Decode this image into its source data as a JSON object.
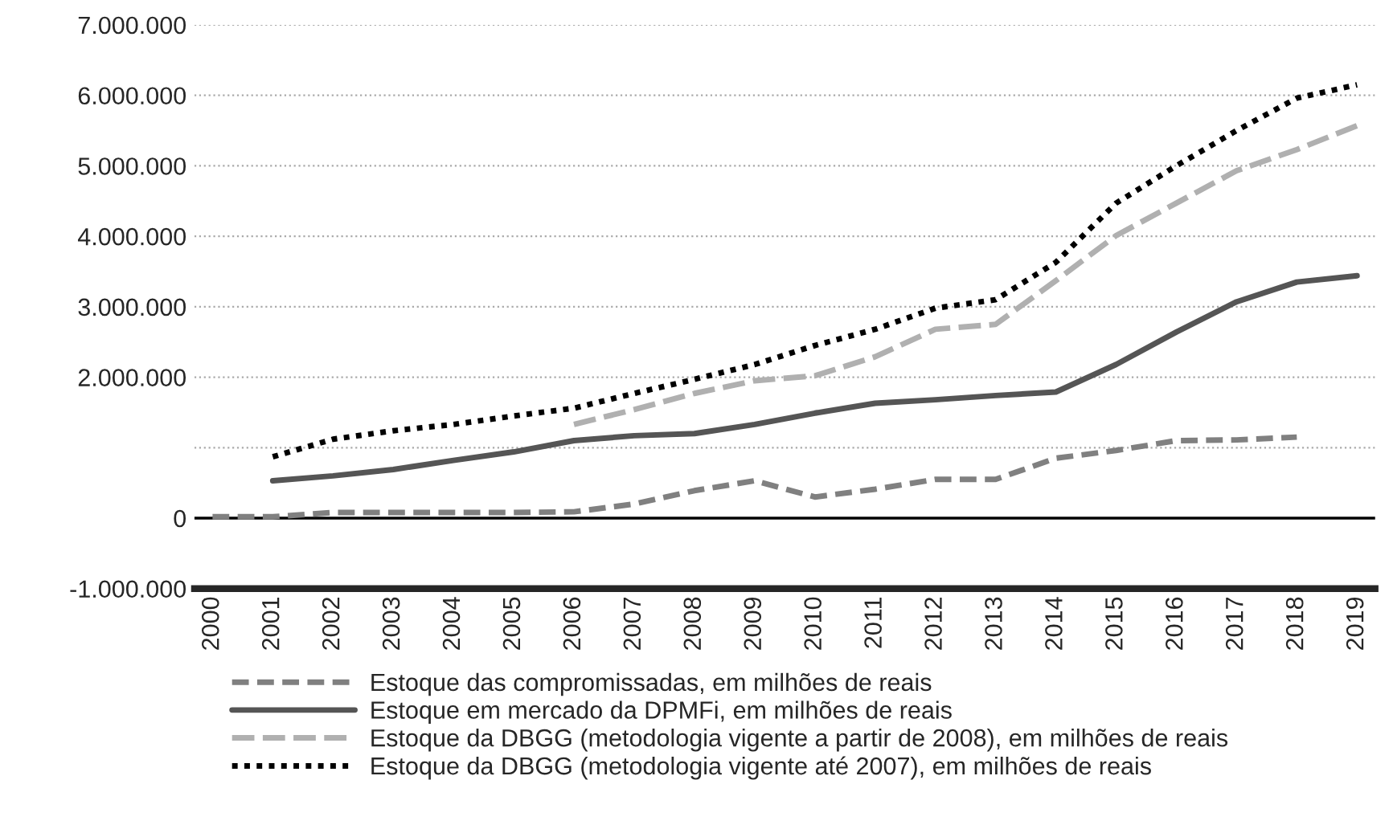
{
  "chart_data": {
    "type": "line",
    "categories": [
      "2000",
      "2001",
      "2002",
      "2003",
      "2004",
      "2005",
      "2006",
      "2007",
      "2008",
      "2009",
      "2010",
      "2011",
      "2012",
      "2013",
      "2014",
      "2015",
      "2016",
      "2017",
      "2018",
      "2019"
    ],
    "series": [
      {
        "name": "Estoque das compromissadas, em milhões de reais",
        "color": "#808080",
        "line_style": "dashed",
        "values": [
          20000,
          20000,
          80000,
          80000,
          80000,
          80000,
          90000,
          200000,
          390000,
          530000,
          300000,
          410000,
          550000,
          550000,
          850000,
          960000,
          1100000,
          1110000,
          1150000,
          null
        ]
      },
      {
        "name": "Estoque em mercado da DPMFi, em milhões de reais",
        "color": "#555555",
        "line_style": "solid",
        "values": [
          null,
          530000,
          600000,
          690000,
          820000,
          940000,
          1100000,
          1170000,
          1200000,
          1330000,
          1490000,
          1630000,
          1680000,
          1740000,
          1790000,
          2180000,
          2640000,
          3070000,
          3350000,
          3440000
        ]
      },
      {
        "name": "Estoque da DBGG (metodologia vigente a partir de 2008), em milhões de reais",
        "color": "#b0b0b0",
        "line_style": "longdash",
        "values": [
          null,
          null,
          null,
          null,
          null,
          null,
          1330000,
          1540000,
          1770000,
          1950000,
          2020000,
          2290000,
          2680000,
          2750000,
          3370000,
          4010000,
          4470000,
          4930000,
          5230000,
          5570000
        ]
      },
      {
        "name": "Estoque da DBGG (metodologia vigente até 2007), em milhões de reais",
        "color": "#000000",
        "line_style": "dotted",
        "values": [
          null,
          870000,
          1120000,
          1240000,
          1330000,
          1450000,
          1560000,
          1770000,
          1970000,
          2180000,
          2450000,
          2680000,
          2980000,
          3100000,
          3630000,
          4470000,
          5000000,
          5500000,
          5960000,
          6150000
        ]
      }
    ],
    "ylim": [
      -1000000,
      7000000
    ],
    "yticks": [
      {
        "value": -1000000,
        "label": "-1.000.000"
      },
      0,
      {
        "value": 1000000,
        "label": null
      },
      {
        "value": 2000000,
        "label": "2.000.000"
      },
      {
        "value": 3000000,
        "label": "3.000.000"
      },
      {
        "value": 4000000,
        "label": "4.000.000"
      },
      {
        "value": 5000000,
        "label": "5.000.000"
      },
      {
        "value": 6000000,
        "label": "6.000.000"
      },
      {
        "value": 7000000,
        "label": "7.000.000"
      }
    ],
    "ref_lines": [
      {
        "axis": "y",
        "value": 0,
        "label": null,
        "color": "#000000"
      }
    ],
    "grid": "y",
    "legend": "bottom"
  }
}
